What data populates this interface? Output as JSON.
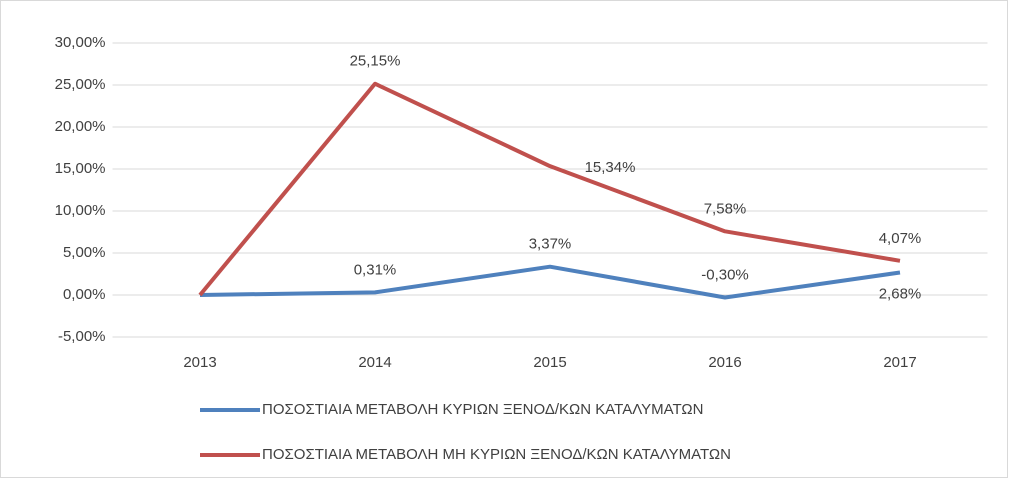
{
  "chart_data": {
    "type": "line",
    "categories": [
      "2013",
      "2014",
      "2015",
      "2016",
      "2017"
    ],
    "series": [
      {
        "name": "ΠΟΣΟΣΤΙΑΙΑ ΜΕΤΑΒΟΛΗ ΚΥΡΙΩΝ ΞΕΝΟΔ/ΚΩΝ ΚΑΤΑΛΥΜΑΤΩΝ",
        "color": "#4f81bd",
        "values": [
          0,
          0.31,
          3.37,
          -0.3,
          2.68
        ],
        "value_labels": [
          null,
          "0,31%",
          "3,37%",
          "-0,30%",
          "2,68%"
        ]
      },
      {
        "name": "ΠΟΣΟΣΤΙΑΙΑ ΜΕΤΑΒΟΛΗ ΜΗ ΚΥΡΙΩΝ ΞΕΝΟΔ/ΚΩΝ ΚΑΤΑΛΥΜΑΤΩΝ",
        "color": "#c0504d",
        "values": [
          0,
          25.15,
          15.34,
          7.58,
          4.07
        ],
        "value_labels": [
          null,
          "25,15%",
          "15,34%",
          "7,58%",
          "4,07%"
        ]
      }
    ],
    "ylim": [
      -5,
      30
    ],
    "yticks": [
      {
        "value": -5,
        "label": "-5,00%"
      },
      {
        "value": 0,
        "label": "0,00%"
      },
      {
        "value": 5,
        "label": "5,00%"
      },
      {
        "value": 10,
        "label": "10,00%"
      },
      {
        "value": 15,
        "label": "15,00%"
      },
      {
        "value": 20,
        "label": "20,00%"
      },
      {
        "value": 25,
        "label": "25,00%"
      },
      {
        "value": 30,
        "label": "30,00%"
      }
    ],
    "grid": true,
    "legend": "bottom"
  }
}
